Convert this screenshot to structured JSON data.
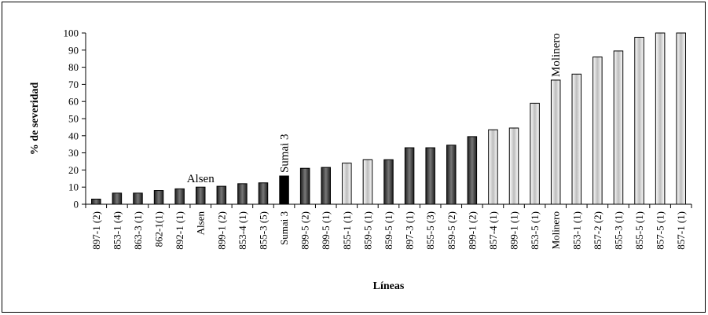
{
  "chart_data": {
    "type": "bar",
    "title": "",
    "xlabel": "Líneas",
    "ylabel": "% de severidad",
    "ylim": [
      0,
      100
    ],
    "yticks": [
      0,
      10,
      20,
      30,
      40,
      50,
      60,
      70,
      80,
      90,
      100
    ],
    "grid": false,
    "categories": [
      "897-1 (2)",
      "853-1 (4)",
      "863-3 (1)",
      "862-1(1)",
      "892-1 (1)",
      "Alsen",
      "899-1 (2)",
      "853-4 (1)",
      "855-3 (5)",
      "Sumai 3",
      "899-5 (2)",
      "899-5 (1)",
      "855-1 (1)",
      "859-5 (1)",
      "859-5 (1)",
      "897-3 (1)",
      "855-5 (3)",
      "859-5 (2)",
      "899-1 (2)",
      "857-4 (1)",
      "899-1 (1)",
      "853-5 (1)",
      "Molinero",
      "853-1 (1)",
      "857-2 (2)",
      "855-3 (1)",
      "855-5 (1)",
      "857-5 (1)",
      "857-1 (1)"
    ],
    "values": [
      3,
      6.5,
      6.5,
      8,
      9,
      10,
      10.5,
      12,
      12.5,
      16.5,
      21,
      21.5,
      24,
      26,
      26,
      33,
      33,
      34.5,
      39.5,
      43.5,
      44.5,
      59,
      72.5,
      76,
      86,
      89.5,
      97.5,
      100,
      100
    ],
    "fills": [
      "dark",
      "dark",
      "dark",
      "dark",
      "dark",
      "dark",
      "dark",
      "dark",
      "dark",
      "black",
      "dark",
      "dark",
      "light",
      "light",
      "dark",
      "dark",
      "dark",
      "dark",
      "dark",
      "light",
      "light",
      "light",
      "light",
      "light",
      "light",
      "light",
      "light",
      "light",
      "light"
    ],
    "annotations": [
      {
        "text": "Alsen",
        "category_index": 5
      },
      {
        "text": "Sumai 3",
        "category_index": 9
      },
      {
        "text": "Molinero",
        "category_index": 22
      }
    ]
  }
}
